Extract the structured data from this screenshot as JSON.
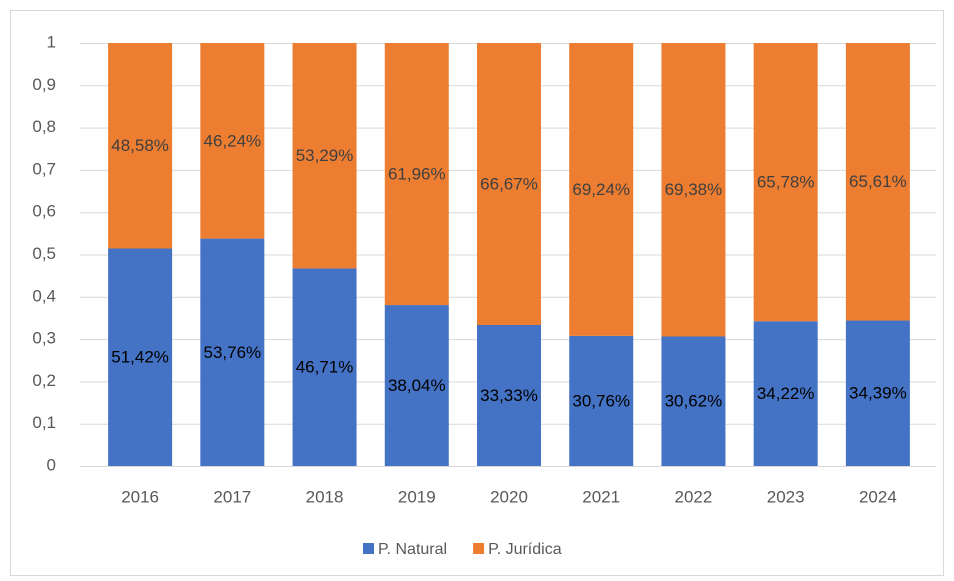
{
  "chart_data": {
    "type": "stacked_bar",
    "categories": [
      "2016",
      "2017",
      "2018",
      "2019",
      "2020",
      "2021",
      "2022",
      "2023",
      "2024"
    ],
    "series": [
      {
        "name": "P. Natural",
        "color": "#4472c4",
        "values": [
          0.5142,
          0.5376,
          0.4671,
          0.3804,
          0.3333,
          0.3076,
          0.3062,
          0.3422,
          0.3439
        ],
        "value_labels": [
          "51,42%",
          "53,76%",
          "46,71%",
          "38,04%",
          "33,33%",
          "30,76%",
          "30,62%",
          "34,22%",
          "34,39%"
        ]
      },
      {
        "name": "P. Jurídica",
        "color": "#ed7d31",
        "values": [
          0.4858,
          0.4624,
          0.5329,
          0.6196,
          0.6667,
          0.6924,
          0.6938,
          0.6578,
          0.6561
        ],
        "value_labels": [
          "48,58%",
          "46,24%",
          "53,29%",
          "61,96%",
          "66,67%",
          "69,24%",
          "69,38%",
          "65,78%",
          "65,61%"
        ]
      }
    ],
    "ylim": [
      0,
      1
    ],
    "yticks": [
      0,
      {
        "value": 0.1,
        "label": "0,1"
      },
      {
        "value": 0.2,
        "label": "0,2"
      },
      {
        "value": 0.3,
        "label": "0,3"
      },
      {
        "value": 0.4,
        "label": "0,4"
      },
      {
        "value": 0.5,
        "label": "0,5"
      },
      {
        "value": 0.6,
        "label": "0,6"
      },
      {
        "value": 0.7,
        "label": "0,7"
      },
      {
        "value": 0.8,
        "label": "0,8"
      },
      {
        "value": 0.9,
        "label": "0,9"
      },
      1
    ],
    "grid": true,
    "legend": "bottom"
  }
}
